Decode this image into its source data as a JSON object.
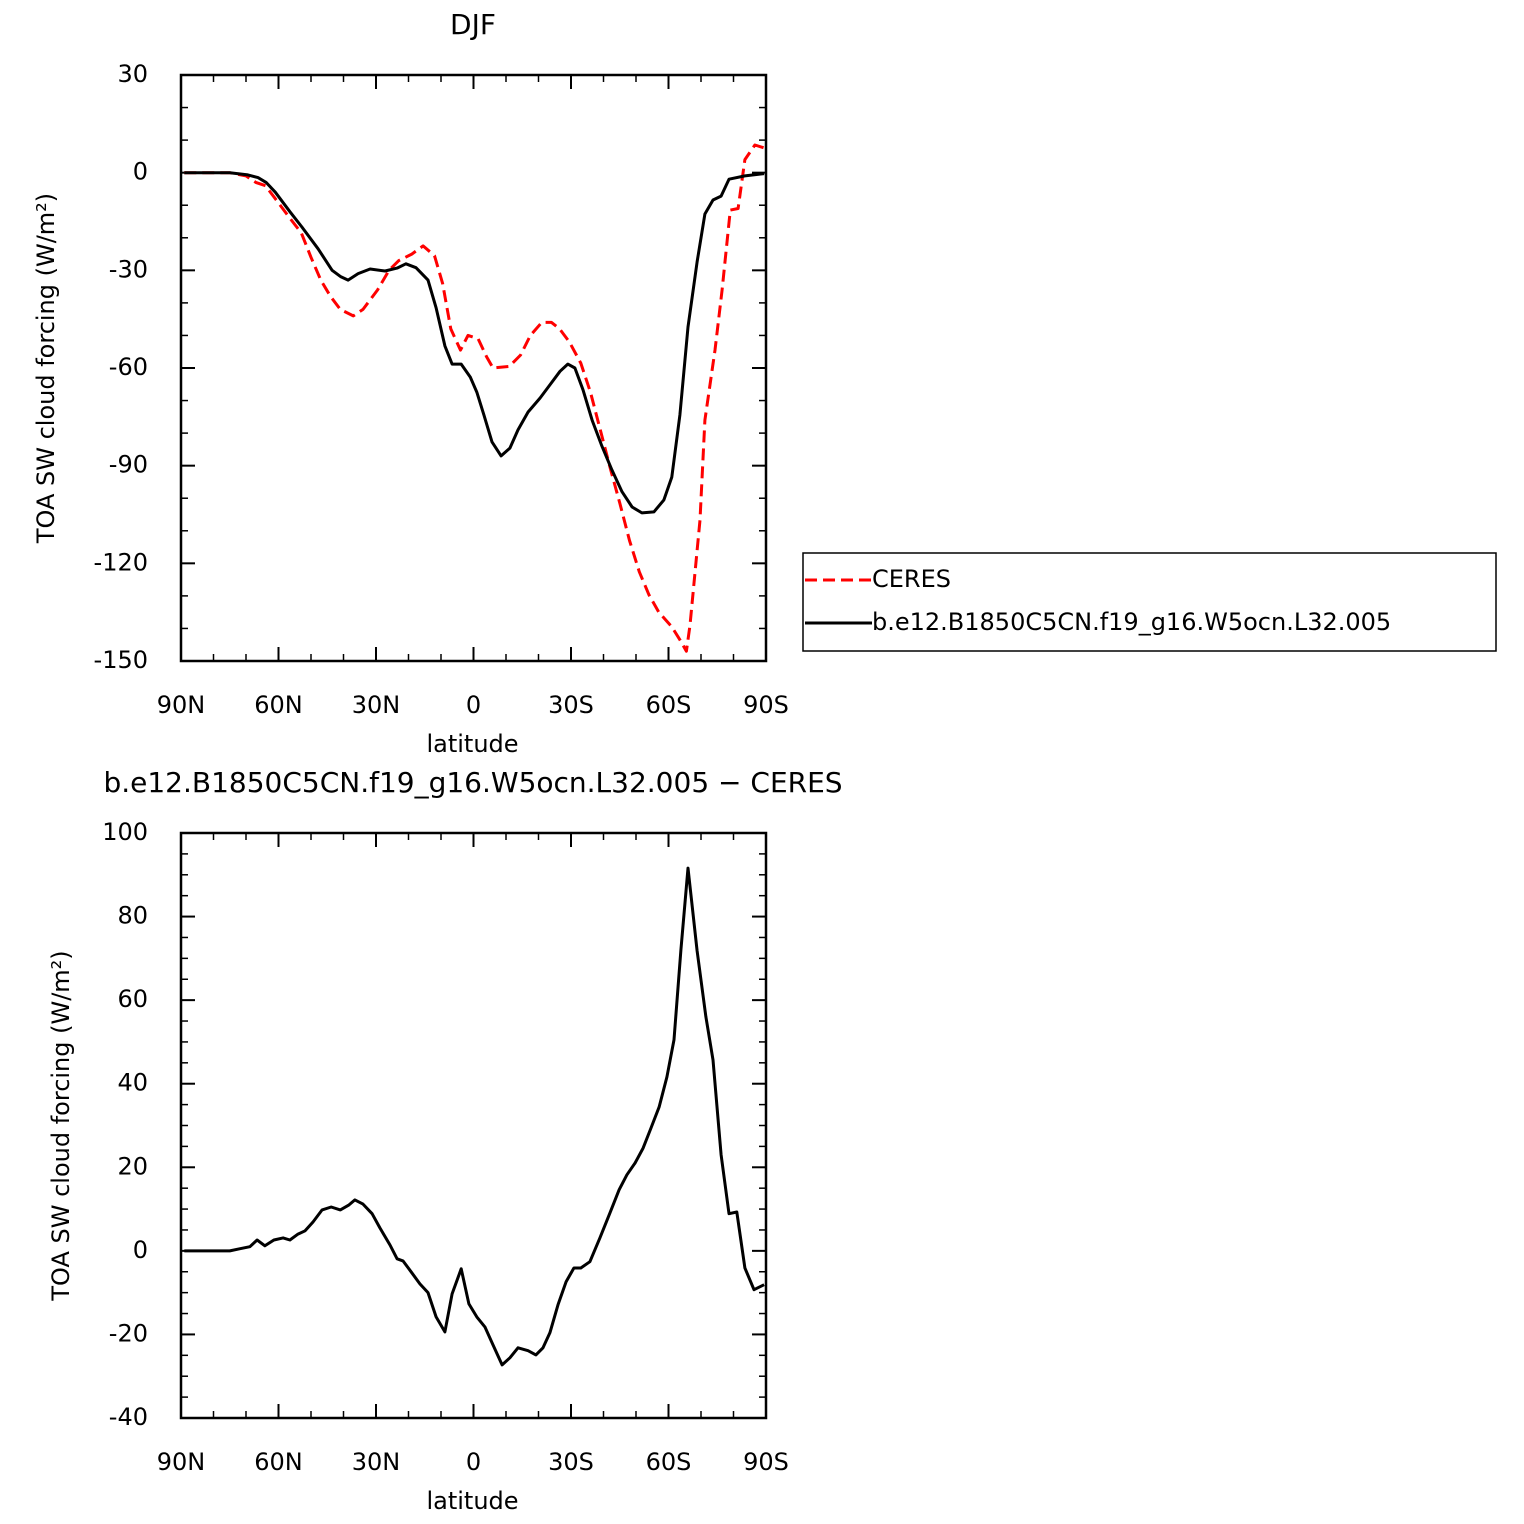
{
  "chart_data": [
    {
      "type": "line",
      "title": "DJF",
      "xlabel": "latitude",
      "ylabel": "TOA SW cloud forcing (W/m²)",
      "xlim": [
        90,
        -90
      ],
      "ylim": [
        -150,
        30
      ],
      "xticks": [
        {
          "value": 90,
          "label": "90N"
        },
        {
          "value": 60,
          "label": "60N"
        },
        {
          "value": 30,
          "label": "30N"
        },
        0,
        {
          "value": -30,
          "label": "30S"
        },
        {
          "value": -60,
          "label": "60S"
        },
        {
          "value": -90,
          "label": "90S"
        }
      ],
      "yticks": [
        -150,
        -120,
        -90,
        -60,
        -30,
        0,
        30
      ],
      "xminorticks": [
        80,
        70,
        50,
        40,
        20,
        10,
        -10,
        -20,
        -40,
        -50,
        -70,
        -80
      ],
      "yminorticks": [
        -140,
        -130,
        -110,
        -100,
        -80,
        -70,
        -50,
        -40,
        -20,
        -10,
        10,
        20
      ],
      "legend": "right",
      "series": [
        {
          "name": "CERES",
          "color": "#ff0000",
          "line_style": "dashed",
          "x": [
            89,
            75,
            70,
            67,
            64,
            61,
            56.5,
            53,
            50,
            47,
            44,
            41,
            37,
            34,
            29.5,
            26,
            23,
            19,
            15.5,
            12,
            9.5,
            7,
            4,
            1.7,
            -1.4,
            -4,
            -6,
            -11,
            -14.5,
            -17.5,
            -21,
            -24,
            -26.5,
            -29.5,
            -33,
            -36,
            -39,
            -42,
            -45,
            -48,
            -51,
            -54,
            -57,
            -61,
            -63.5,
            -65.5,
            -66.6,
            -69.7,
            -71.2,
            -74.3,
            -76.5,
            -79,
            -81.4,
            -83.5,
            -86.6,
            -89.4
          ],
          "values": [
            0,
            0,
            -1,
            -3,
            -4,
            -8,
            -14,
            -18.5,
            -26,
            -33,
            -38,
            -42,
            -44,
            -42,
            -36,
            -30,
            -27,
            -25,
            -22.5,
            -25.5,
            -34,
            -48,
            -54.5,
            -50,
            -51,
            -56.5,
            -60,
            -59.5,
            -56,
            -50,
            -46,
            -46,
            -48,
            -52,
            -58.5,
            -67.5,
            -79,
            -90.5,
            -101.5,
            -113,
            -122.6,
            -129.7,
            -135,
            -139.5,
            -143.5,
            -147,
            -139,
            -106.7,
            -76,
            -54.5,
            -36,
            -11.5,
            -11,
            4,
            8.5,
            7.6
          ]
        },
        {
          "name": "b.e12.B1850C5CN.f19_g16.W5ocn.L32.005",
          "color": "#000000",
          "line_style": "solid",
          "x": [
            89,
            75,
            69.4,
            66.3,
            63.8,
            61,
            56.5,
            52.8,
            47.8,
            43.5,
            40.8,
            38.6,
            35.5,
            31.8,
            27.2,
            23.5,
            20.8,
            17.7,
            14,
            11.5,
            8.8,
            6.6,
            3.8,
            1,
            -1,
            -3.2,
            -5.7,
            -8.5,
            -11.2,
            -13.7,
            -16.8,
            -20.5,
            -23.5,
            -26.6,
            -29,
            -31.2,
            -33.7,
            -36.5,
            -39.5,
            -42.6,
            -45.7,
            -48.8,
            -51.8,
            -55.5,
            -58.6,
            -61,
            -63.5,
            -66,
            -68.8,
            -71.2,
            -73.7,
            -76.2,
            -78.6,
            -83.5,
            -89.4
          ],
          "values": [
            0,
            0,
            -0.7,
            -1.5,
            -3,
            -6,
            -12,
            -16.7,
            -23.4,
            -30,
            -32,
            -33,
            -31,
            -29.6,
            -30.2,
            -29.3,
            -28,
            -29.2,
            -33,
            -41.5,
            -53.2,
            -58.8,
            -58.8,
            -62.8,
            -67.4,
            -74.4,
            -82.7,
            -87,
            -84.6,
            -79,
            -73.5,
            -69.2,
            -65.2,
            -61,
            -58.8,
            -60,
            -66.7,
            -76,
            -84,
            -91.3,
            -98,
            -102.7,
            -104.5,
            -104.2,
            -100.5,
            -93.5,
            -74.4,
            -47.4,
            -27.4,
            -12.7,
            -8.4,
            -7.2,
            -2,
            -1,
            -0.3
          ]
        }
      ]
    },
    {
      "type": "line",
      "title": "b.e12.B1850C5CN.f19_g16.W5ocn.L32.005 − CERES",
      "xlabel": "latitude",
      "ylabel": "TOA SW cloud forcing (W/m²)",
      "xlim": [
        90,
        -90
      ],
      "ylim": [
        -40,
        100
      ],
      "xticks": [
        {
          "value": 90,
          "label": "90N"
        },
        {
          "value": 60,
          "label": "60N"
        },
        {
          "value": 30,
          "label": "30N"
        },
        0,
        {
          "value": -30,
          "label": "30S"
        },
        {
          "value": -60,
          "label": "60S"
        },
        {
          "value": -90,
          "label": "90S"
        }
      ],
      "yticks": [
        -40,
        -20,
        0,
        20,
        40,
        60,
        80,
        100
      ],
      "xminorticks": [
        80,
        70,
        50,
        40,
        20,
        10,
        -10,
        -20,
        -40,
        -50,
        -70,
        -80
      ],
      "yminorticks": [
        -35,
        -30,
        -25,
        -15,
        -10,
        -5,
        5,
        10,
        15,
        25,
        30,
        35,
        45,
        50,
        55,
        65,
        70,
        75,
        85,
        90,
        95
      ],
      "color": "#000000",
      "x": [
        89,
        75,
        72,
        68.8,
        66.6,
        64.2,
        61.4,
        58.6,
        56.5,
        54,
        51.8,
        49.4,
        46.6,
        43.8,
        41,
        38.3,
        36.5,
        34,
        31.2,
        28.8,
        25.7,
        23.5,
        21.7,
        19.2,
        16.5,
        14,
        11.5,
        8.8,
        6.6,
        3.8,
        1.4,
        -1,
        -3.5,
        -6,
        -8.8,
        -11.2,
        -13.7,
        -16.8,
        -19.2,
        -21.4,
        -23.5,
        -26,
        -28.5,
        -30.9,
        -33,
        -35.8,
        -38.9,
        -42,
        -44.8,
        -47.2,
        -49.7,
        -52.2,
        -54.6,
        -57.1,
        -59.5,
        -61.7,
        -63.8,
        -66,
        -68.8,
        -71.5,
        -73.7,
        -76.2,
        -78.6,
        -81,
        -83.5,
        -86.3,
        -89.4
      ],
      "values": [
        0,
        0,
        0.5,
        1,
        2.6,
        1.2,
        2.6,
        3.1,
        2.6,
        4,
        4.8,
        6.9,
        9.8,
        10.5,
        9.8,
        11,
        12.2,
        11.2,
        8.9,
        5.5,
        1.4,
        -1.9,
        -2.4,
        -5,
        -7.9,
        -10,
        -15.8,
        -19.4,
        -10.3,
        -4.3,
        -12.7,
        -15.8,
        -18.2,
        -22.5,
        -27.3,
        -25.6,
        -23.2,
        -23.9,
        -24.9,
        -23.2,
        -19.6,
        -12.9,
        -7.4,
        -4.1,
        -4.1,
        -2.6,
        3.1,
        9.1,
        14.6,
        18.2,
        21,
        24.6,
        29.4,
        34.4,
        41.6,
        50.5,
        72,
        91.6,
        71.8,
        56,
        45.7,
        23,
        8.9,
        9.3,
        -4.1,
        -9.3,
        -8.1
      ]
    }
  ]
}
